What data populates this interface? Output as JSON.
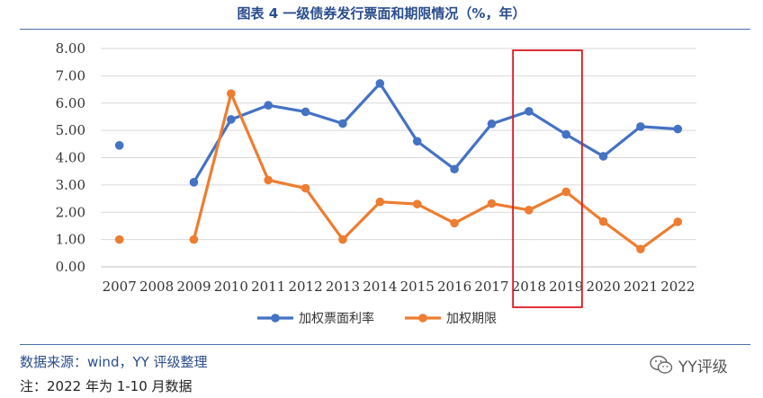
{
  "title": "图表 4 一级债券发行票面和期限情况（%，年）",
  "chart_data": {
    "type": "line",
    "categories": [
      "2007",
      "2008",
      "2009",
      "2010",
      "2011",
      "2012",
      "2013",
      "2014",
      "2015",
      "2016",
      "2017",
      "2018",
      "2019",
      "2020",
      "2021",
      "2022"
    ],
    "series": [
      {
        "name": "加权票面利率",
        "color": "#4472c4",
        "values": [
          4.45,
          null,
          3.1,
          5.4,
          5.92,
          5.68,
          5.25,
          6.72,
          4.6,
          3.58,
          5.24,
          5.7,
          4.85,
          4.05,
          5.14,
          5.05
        ]
      },
      {
        "name": "加权期限",
        "color": "#ed7d31",
        "values": [
          1.0,
          null,
          1.0,
          6.35,
          3.18,
          2.88,
          1.0,
          2.38,
          2.3,
          1.6,
          2.32,
          2.08,
          2.75,
          1.66,
          0.65,
          1.65
        ]
      }
    ],
    "yticks": [
      "0.00",
      "1.00",
      "2.00",
      "3.00",
      "4.00",
      "5.00",
      "6.00",
      "7.00",
      "8.00"
    ],
    "ylim": [
      0,
      8
    ],
    "grid": true,
    "legend": "bottom",
    "highlight": {
      "from": "2018",
      "to": "2019",
      "color": "#e0191f"
    }
  },
  "source": "数据来源：wind，YY 评级整理",
  "note": "注：2022 年为 1-10 月数据",
  "watermark": {
    "text": "YY评级",
    "icon": "wechat-icon"
  }
}
